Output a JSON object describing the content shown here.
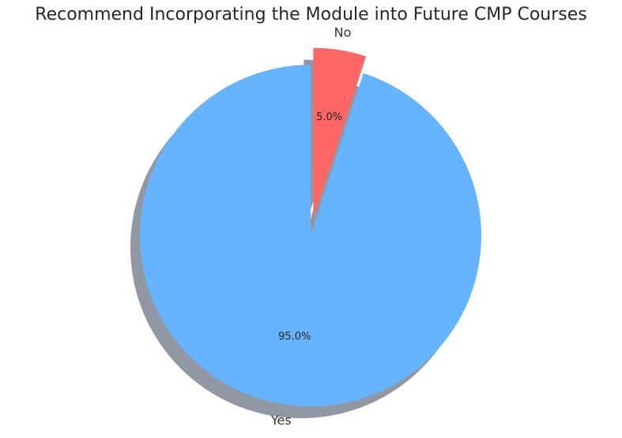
{
  "chart_data": {
    "type": "pie",
    "title": "Recommend Incorporating the Module into Future CMP Courses",
    "categories": [
      "Yes",
      "No"
    ],
    "values": [
      95.0,
      5.0
    ],
    "value_labels": [
      "95.0%",
      "5.0%"
    ],
    "colors": [
      "#66b3ff",
      "#ff6666"
    ],
    "exploded": [
      false,
      true
    ],
    "shadow": true,
    "legend": "none"
  }
}
